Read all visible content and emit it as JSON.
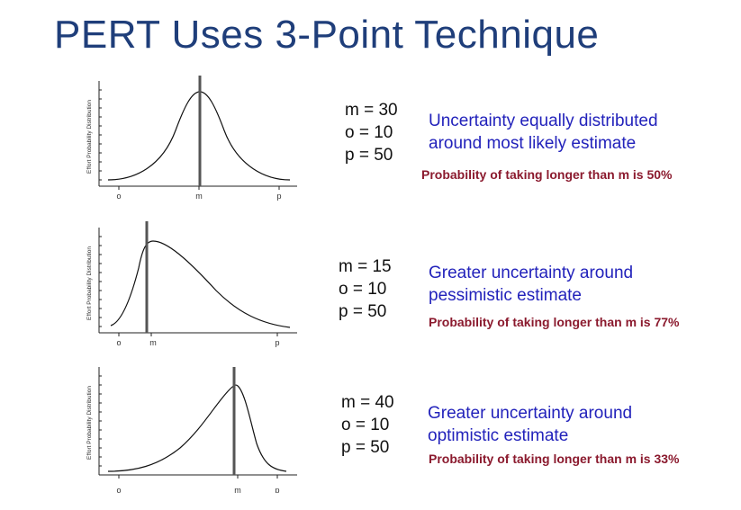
{
  "title": "PERT Uses 3-Point Technique",
  "panels": [
    {
      "params": [
        "m = 30",
        "o = 10",
        "p = 50"
      ],
      "description": [
        "Uncertainty equally distributed",
        "around most likely estimate"
      ],
      "probability": "Probability of taking longer than m is 50%",
      "y_axis_label": "Effort Probability Distribution",
      "x_ticks": [
        "o",
        "m",
        "p"
      ]
    },
    {
      "params": [
        "m = 15",
        "o = 10",
        "p = 50"
      ],
      "description": [
        "Greater uncertainty around",
        "pessimistic estimate"
      ],
      "probability": "Probability of taking longer than m is 77%",
      "y_axis_label": "Effort Probability Distribution",
      "x_ticks": [
        "o",
        "m",
        "p"
      ]
    },
    {
      "params": [
        "m = 40",
        "o = 10",
        "p = 50"
      ],
      "description": [
        "Greater uncertainty around",
        "optimistic estimate"
      ],
      "probability": "Probability of taking longer than m is 33%",
      "y_axis_label": "Effort Probability Distribution",
      "x_ticks": [
        "o",
        "m",
        "p"
      ]
    }
  ],
  "colors": {
    "title": "#1f3e7a",
    "description": "#2222bb",
    "probability": "#8b1a2e"
  }
}
